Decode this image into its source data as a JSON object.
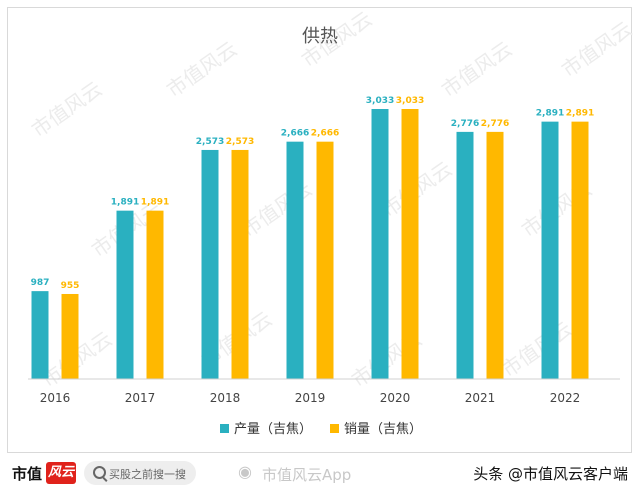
{
  "chart_data": {
    "type": "bar",
    "title": "供热",
    "categories": [
      "2016",
      "2017",
      "2018",
      "2019",
      "2020",
      "2021",
      "2022"
    ],
    "series": [
      {
        "name": "产量（吉焦）",
        "color": "#2ab0c0",
        "values": [
          987,
          1891,
          2573,
          2666,
          3033,
          2776,
          2891
        ]
      },
      {
        "name": "销量（吉焦）",
        "color": "#ffb800",
        "values": [
          955,
          1891,
          2573,
          2666,
          3033,
          2776,
          2891
        ]
      }
    ],
    "value_labels": [
      [
        "987",
        "1,891",
        "2,573",
        "2,666",
        "3,033",
        "2,776",
        "2,891"
      ],
      [
        "955",
        "1,891",
        "2,573",
        "2,666",
        "3,033",
        "2,776",
        "2,891"
      ]
    ],
    "ylim": [
      0,
      3033
    ],
    "grid": false,
    "legend_position": "bottom"
  },
  "watermark": "市值风云",
  "footer": {
    "brand_name": "市值",
    "brand_logo_text": "风云",
    "search_placeholder": "买股之前搜一搜",
    "weibo_watermark": "市值风云App",
    "credit": "头条 @市值风云客户端"
  }
}
